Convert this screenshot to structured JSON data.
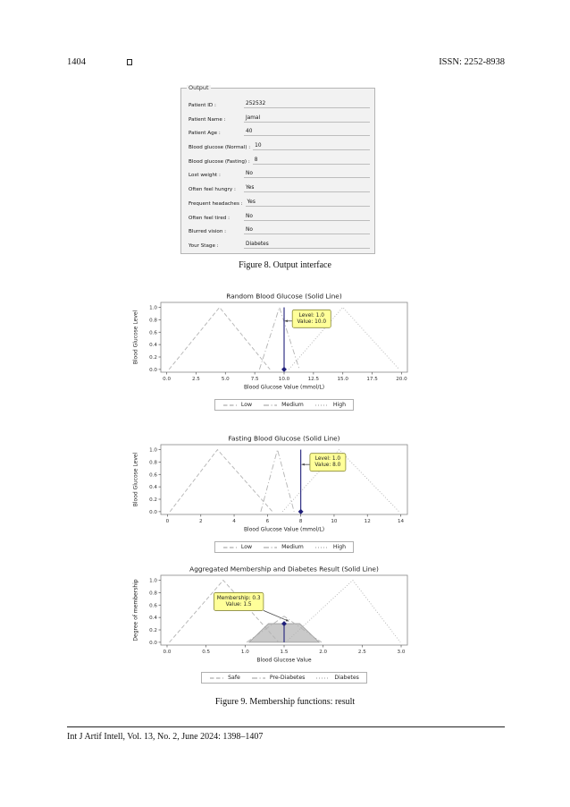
{
  "header": {
    "page_number": "1404",
    "issn": "ISSN: 2252-8938"
  },
  "output_panel": {
    "title": "Output",
    "rows": [
      {
        "label": "Patient ID :",
        "value": "252532"
      },
      {
        "label": "Patient Name :",
        "value": "Jamal"
      },
      {
        "label": "Patient Age :",
        "value": "40"
      },
      {
        "label": "Blood glucose (Normal) :",
        "value": "10"
      },
      {
        "label": "Blood glucose (Fasting) :",
        "value": "8"
      },
      {
        "label": "Lost weight :",
        "value": "No"
      },
      {
        "label": "Often feel hungry :",
        "value": "Yes"
      },
      {
        "label": "Frequent headaches :",
        "value": "Yes"
      },
      {
        "label": "Often feel tired :",
        "value": "No"
      },
      {
        "label": "Blurred vision :",
        "value": "No"
      },
      {
        "label": "Your Stage :",
        "value": "Diabetes"
      }
    ]
  },
  "captions": {
    "figure8": "Figure 8. Output interface",
    "figure9": "Figure 9. Membership functions: result"
  },
  "footer": {
    "text": "Int J Artif Intell, Vol. 13, No. 2, June 2024: 1398–1407"
  },
  "colors": {
    "membership_line": "#b3b3b3",
    "marker_line": "#1f1f7a",
    "annotation_bg": "#ffff99",
    "annotation_border": "#8a8a3a",
    "fill_area": "#c9c9c9",
    "spine": "#888888"
  },
  "chart_data": [
    {
      "type": "line",
      "title": "Random Blood Glucose (Solid Line)",
      "xlabel": "Blood Glucose Value (mmol/L)",
      "ylabel": "Blood Glucose Level",
      "xlim": [
        -0.5,
        20.5
      ],
      "ylim": [
        -0.045,
        1.08
      ],
      "grid": false,
      "legend_position": "below",
      "xtick_vals": [
        0,
        2.5,
        5,
        7.5,
        10,
        12.5,
        15,
        17.5,
        20
      ],
      "xticks": [
        "0.0",
        "2.5",
        "5.0",
        "7.5",
        "10.0",
        "12.5",
        "15.0",
        "17.5",
        "20.0"
      ],
      "ytick_vals": [
        0,
        0.2,
        0.4,
        0.6,
        0.8,
        1.0
      ],
      "yticks": [
        "0.0",
        "0.2",
        "0.4",
        "0.6",
        "0.8",
        "1.0"
      ],
      "series": [
        {
          "name": "Low",
          "dash": "dashed",
          "points": [
            [
              0.2,
              0
            ],
            [
              4.5,
              1.0
            ],
            [
              8.8,
              0
            ]
          ]
        },
        {
          "name": "Medium",
          "dash": "dashdot",
          "points": [
            [
              7.9,
              0
            ],
            [
              9.6,
              1.0
            ],
            [
              11.3,
              0
            ]
          ]
        },
        {
          "name": "High",
          "dash": "dotted",
          "points": [
            [
              10.4,
              0
            ],
            [
              15.0,
              1.0
            ],
            [
              19.8,
              0
            ]
          ]
        }
      ],
      "marker_line": {
        "x": 10.0,
        "y0": 0,
        "y1": 1.0
      },
      "marker_at": [
        10.0,
        0
      ],
      "annotation": {
        "lines": [
          "Level: 1.0",
          "Value: 10.0"
        ],
        "target": [
          10.05,
          0.78
        ],
        "box_x": 10.7,
        "box_y": 0.96
      },
      "legend": [
        {
          "label": "Low",
          "dash": "dashed"
        },
        {
          "label": "Medium",
          "dash": "dashdot"
        },
        {
          "label": "High",
          "dash": "dotted"
        }
      ]
    },
    {
      "type": "line",
      "title": "Fasting Blood Glucose (Solid Line)",
      "xlabel": "Blood Glucose Value (mmol/L)",
      "ylabel": "Blood Glucose Level",
      "xlim": [
        -0.4,
        14.4
      ],
      "ylim": [
        -0.045,
        1.08
      ],
      "grid": false,
      "legend_position": "below",
      "xtick_vals": [
        0,
        2,
        4,
        6,
        8,
        10,
        12,
        14
      ],
      "xticks": [
        "0",
        "2",
        "4",
        "6",
        "8",
        "10",
        "12",
        "14"
      ],
      "ytick_vals": [
        0,
        0.2,
        0.4,
        0.6,
        0.8,
        1.0
      ],
      "yticks": [
        "0.0",
        "0.2",
        "0.4",
        "0.6",
        "0.8",
        "1.0"
      ],
      "series": [
        {
          "name": "Low",
          "dash": "dashed",
          "points": [
            [
              0.15,
              0
            ],
            [
              3.0,
              1.0
            ],
            [
              6.3,
              0
            ]
          ]
        },
        {
          "name": "Medium",
          "dash": "dashdot",
          "points": [
            [
              5.6,
              0
            ],
            [
              6.6,
              1.0
            ],
            [
              7.6,
              0
            ]
          ]
        },
        {
          "name": "High",
          "dash": "dotted",
          "points": [
            [
              6.9,
              0
            ],
            [
              10.3,
              1.0
            ],
            [
              13.9,
              0
            ]
          ]
        }
      ],
      "marker_line": {
        "x": 8.0,
        "y0": 0,
        "y1": 1.0
      },
      "marker_at": [
        8.0,
        0
      ],
      "annotation": {
        "lines": [
          "Level: 1.0",
          "Value: 8.0"
        ],
        "target": [
          8.05,
          0.76
        ],
        "box_x": 8.55,
        "box_y": 0.94
      },
      "legend": [
        {
          "label": "Low",
          "dash": "dashed"
        },
        {
          "label": "Medium",
          "dash": "dashdot"
        },
        {
          "label": "High",
          "dash": "dotted"
        }
      ]
    },
    {
      "type": "line",
      "title": "Aggregated Membership and Diabetes Result (Solid Line)",
      "xlabel": "Blood Glucose Value",
      "ylabel": "Degree of membership",
      "xlim": [
        -0.08,
        3.08
      ],
      "ylim": [
        -0.045,
        1.08
      ],
      "grid": false,
      "legend_position": "below",
      "xtick_vals": [
        0,
        0.5,
        1.0,
        1.5,
        2.0,
        2.5,
        3.0
      ],
      "xticks": [
        "0.0",
        "0.5",
        "1.0",
        "1.5",
        "2.0",
        "2.5",
        "3.0"
      ],
      "ytick_vals": [
        0,
        0.2,
        0.4,
        0.6,
        0.8,
        1.0
      ],
      "yticks": [
        "0.0",
        "0.2",
        "0.4",
        "0.6",
        "0.8",
        "1.0"
      ],
      "fill": {
        "points": [
          [
            1.05,
            0
          ],
          [
            1.3,
            0.3
          ],
          [
            1.7,
            0.3
          ],
          [
            1.95,
            0
          ]
        ]
      },
      "series": [
        {
          "name": "Safe",
          "dash": "dashed",
          "points": [
            [
              0.03,
              0
            ],
            [
              0.72,
              1.0
            ],
            [
              1.43,
              0
            ]
          ]
        },
        {
          "name": "Pre-Diabetes",
          "dash": "dashdot",
          "points": [
            [
              1.02,
              0
            ],
            [
              1.5,
              0.42
            ],
            [
              1.98,
              0
            ]
          ]
        },
        {
          "name": "Diabetes",
          "dash": "dotted",
          "points": [
            [
              1.52,
              0
            ],
            [
              2.38,
              1.0
            ],
            [
              2.99,
              0
            ]
          ]
        }
      ],
      "marker_line": {
        "x": 1.5,
        "y0": 0,
        "y1": 0.3
      },
      "marker_at": [
        1.5,
        0.3
      ],
      "annotation": {
        "lines": [
          "Membership: 0.3",
          "Value: 1.5"
        ],
        "target": [
          1.56,
          0.34
        ],
        "box_x": 0.6,
        "box_y": 0.8
      },
      "legend": [
        {
          "label": "Safe",
          "dash": "dashed"
        },
        {
          "label": "Pre-Diabetes",
          "dash": "dashdot"
        },
        {
          "label": "Diabetes",
          "dash": "dotted"
        }
      ]
    }
  ]
}
